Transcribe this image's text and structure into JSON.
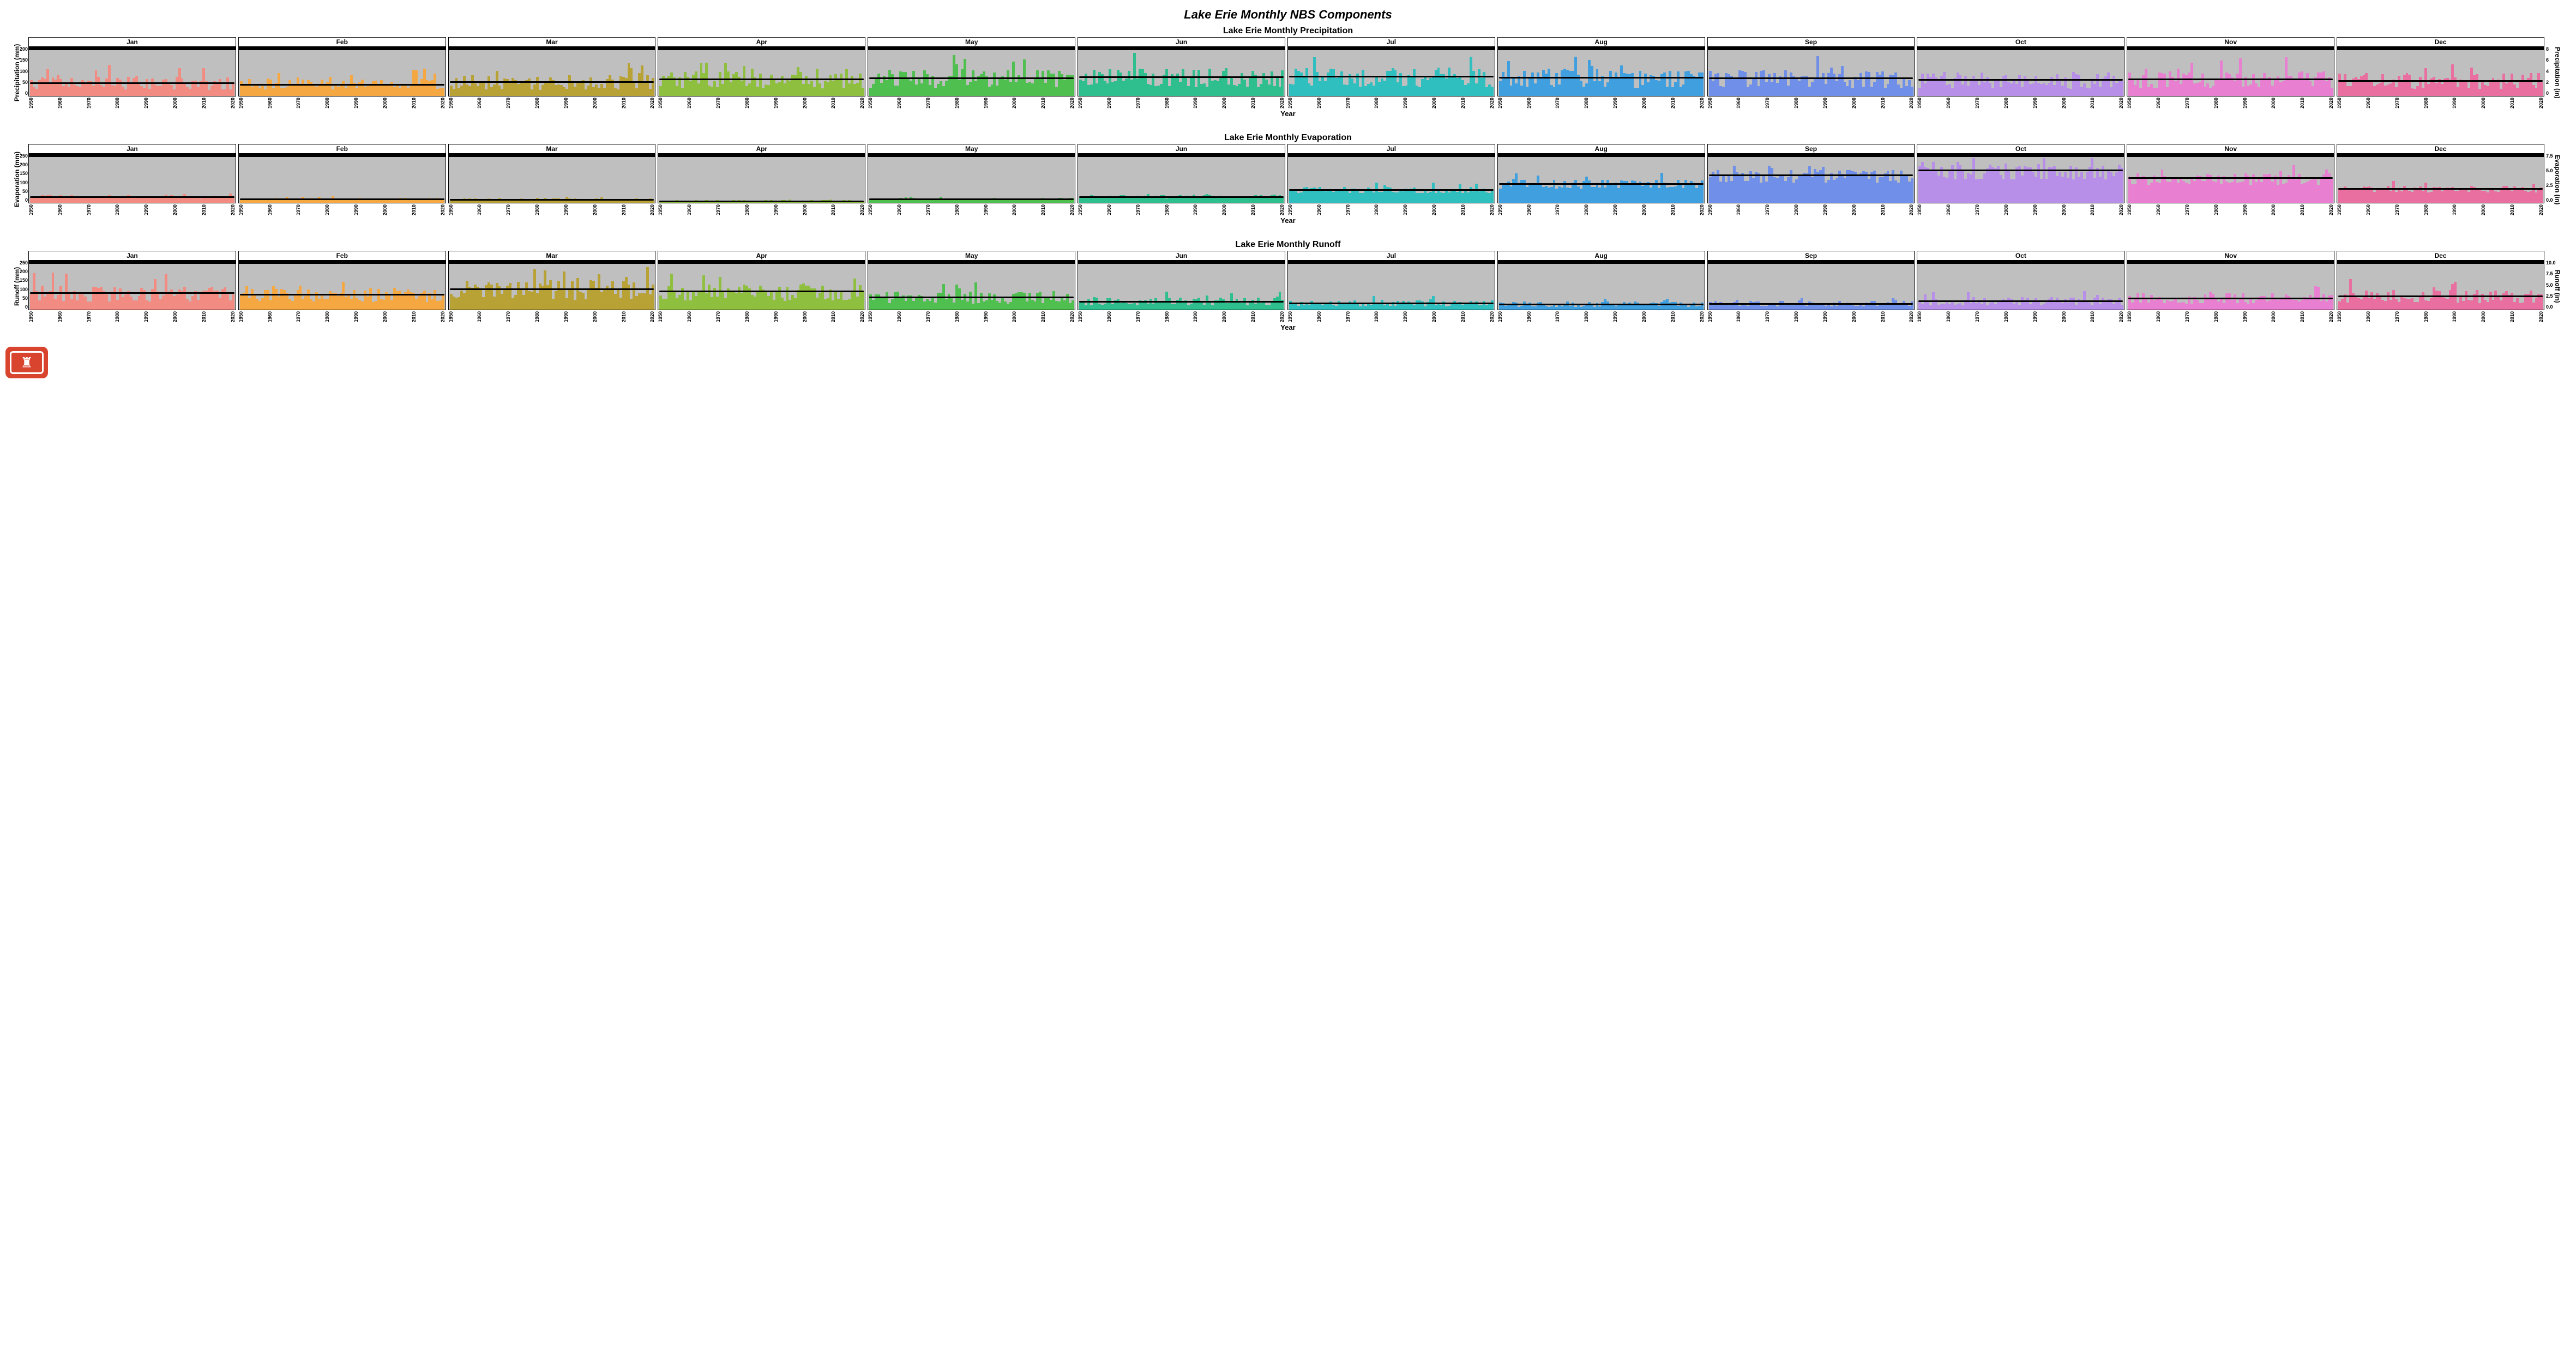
{
  "title": "Lake Erie Monthly NBS Components",
  "x_axis_label": "Year",
  "x_ticks": [
    "1950",
    "1960",
    "1970",
    "1980",
    "1990",
    "2000",
    "2010",
    "2020"
  ],
  "months": [
    "Jan",
    "Feb",
    "Mar",
    "Apr",
    "May",
    "Jun",
    "Jul",
    "Aug",
    "Sep",
    "Oct",
    "Nov",
    "Dec"
  ],
  "month_colors": [
    "#f28b82",
    "#f5a742",
    "#b8a135",
    "#8fbf3f",
    "#4fbf4f",
    "#2fbf8f",
    "#2fbfbf",
    "#3f9fdf",
    "#6f8fe8",
    "#b78fe8",
    "#e87fd0",
    "#e86f9f"
  ],
  "rows": [
    {
      "title": "Lake Erie Monthly Precipitation",
      "y_label_left": "Precipitation (mm)",
      "y_label_right": "Precipitation (in)",
      "ylim": [
        0,
        220
      ],
      "y_ticks_left": [
        "200",
        "150",
        "100",
        "50",
        "0"
      ],
      "y_ticks_right": [
        "8",
        "6",
        "4",
        "2",
        "0"
      ],
      "plot_bg": "#bfbfbf",
      "means": [
        62,
        55,
        65,
        78,
        82,
        88,
        90,
        85,
        82,
        75,
        78,
        72
      ],
      "noise": 0.55
    },
    {
      "title": "Lake Erie Monthly Evaporation",
      "y_label_left": "Evaporation (mm)",
      "y_label_right": "Evaporation (in)",
      "ylim": [
        0,
        260
      ],
      "y_ticks_left": [
        "250",
        "200",
        "150",
        "100",
        "50",
        "0"
      ],
      "y_ticks_right": [
        "7.5",
        "5.0",
        "2.5",
        "0.0"
      ],
      "plot_bg": "#bfbfbf",
      "means": [
        35,
        22,
        20,
        12,
        22,
        35,
        72,
        105,
        150,
        175,
        135,
        78
      ],
      "noise": 0.25
    },
    {
      "title": "Lake Erie Monthly Runoff",
      "y_label_left": "Runoff (mm)",
      "y_label_right": "Runoff (in)",
      "ylim": [
        0,
        270
      ],
      "y_ticks_left": [
        "250",
        "200",
        "150",
        "100",
        "50",
        "0"
      ],
      "y_ticks_right": [
        "10.0",
        "7.5",
        "5.0",
        "2.5",
        "0.0"
      ],
      "plot_bg": "#bfbfbf",
      "means": [
        95,
        88,
        118,
        105,
        72,
        48,
        38,
        32,
        35,
        50,
        65,
        78
      ],
      "noise": 0.5
    }
  ],
  "logo": {
    "bg": "#d9442f",
    "glyph": "♜"
  }
}
